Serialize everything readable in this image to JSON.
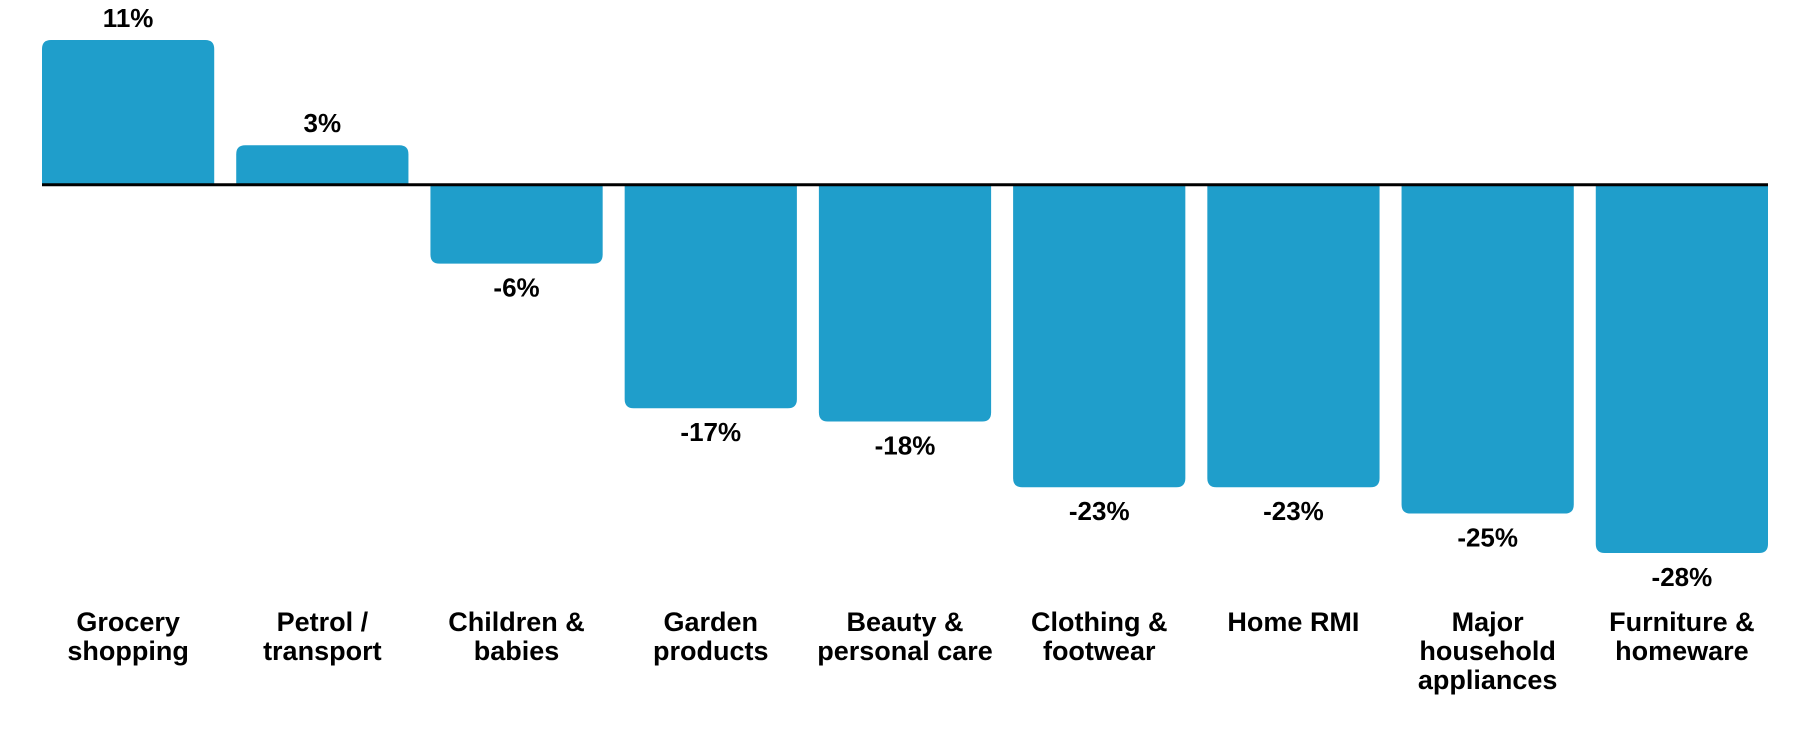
{
  "chart_data": {
    "type": "bar",
    "categories": [
      "Grocery shopping",
      "Petrol / transport",
      "Children & babies",
      "Garden products",
      "Beauty & personal care",
      "Clothing & footwear",
      "Home RMI",
      "Major household appliances",
      "Furniture & homeware"
    ],
    "values": [
      11,
      3,
      -6,
      -17,
      -18,
      -23,
      -23,
      -25,
      -28
    ],
    "value_labels": [
      "11%",
      "3%",
      "-6%",
      "-17%",
      "-18%",
      "-23%",
      "-23%",
      "-25%",
      "-28%"
    ],
    "color": "#1f9ecb"
  }
}
